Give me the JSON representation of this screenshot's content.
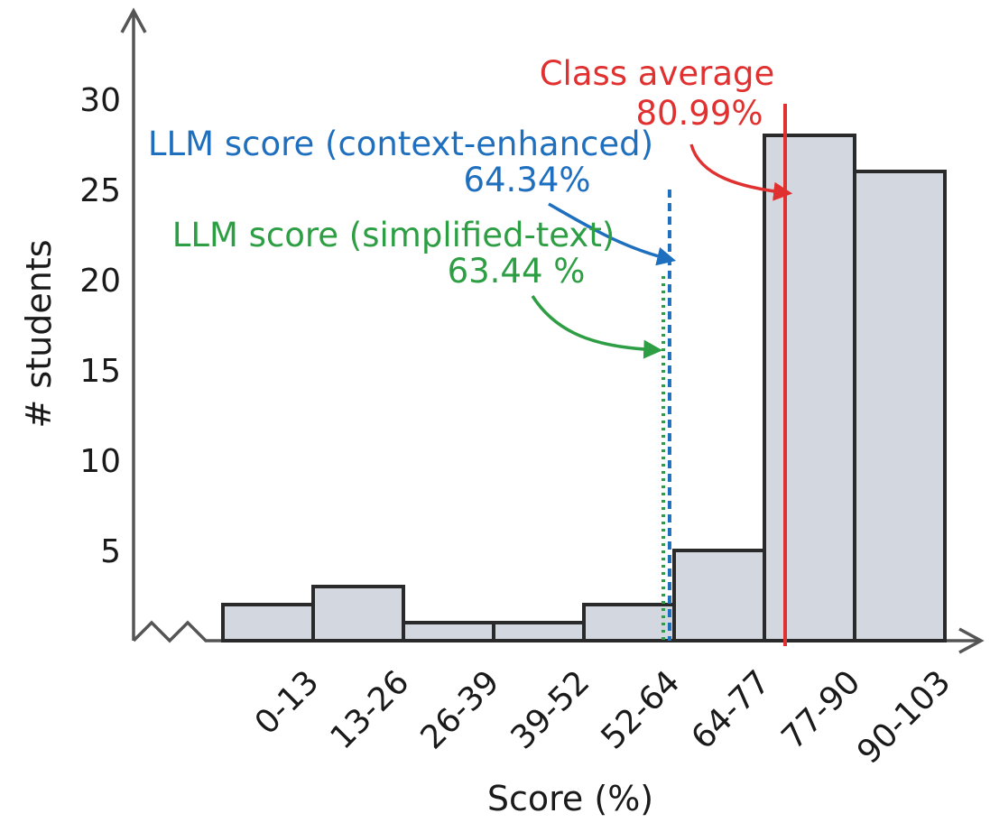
{
  "chart_data": {
    "type": "bar",
    "categories": [
      "0-13",
      "13-26",
      "26-39",
      "39-52",
      "52-64",
      "64-77",
      "77-90",
      "90-103"
    ],
    "values": [
      2,
      3,
      1,
      1,
      2,
      5,
      28,
      26
    ],
    "xlabel": "Score (%)",
    "ylabel": "# students",
    "y_ticks": [
      5,
      10,
      15,
      20,
      25,
      30
    ],
    "ylim": [
      0,
      35
    ],
    "xlim": [
      -13,
      104
    ],
    "grid": false,
    "bar_color": "#d3d8e0",
    "reference_lines": [
      {
        "name": "Class average",
        "value_label": "80.99%",
        "x": 80.99,
        "style": "solid",
        "color": "#e03030"
      },
      {
        "name": "LLM score (context-enhanced)",
        "value_label": "64.34%",
        "x": 64.34,
        "style": "dashed",
        "color": "#1f6fbf"
      },
      {
        "name": "LLM score (simplified-text)",
        "value_label": "63.44 %",
        "x": 63.44,
        "style": "dotted",
        "color": "#2e9e44"
      }
    ]
  }
}
